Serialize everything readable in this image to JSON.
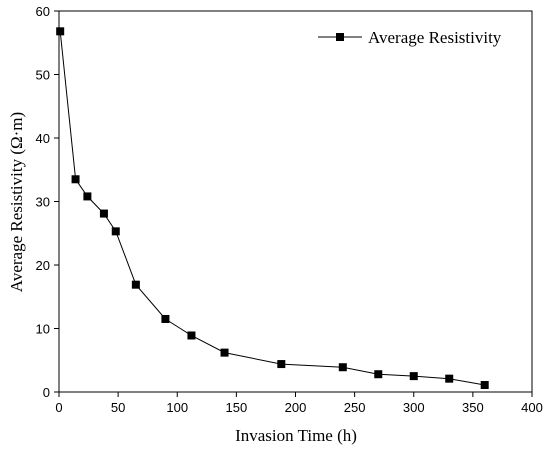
{
  "chart_data": {
    "type": "line",
    "xlabel": "Invasion Time (h)",
    "ylabel": "Average Resistivity (Ω·m)",
    "xlim": [
      0,
      400
    ],
    "ylim": [
      0,
      60
    ],
    "x_ticks": [
      0,
      50,
      100,
      150,
      200,
      250,
      300,
      350,
      400
    ],
    "y_ticks": [
      0,
      10,
      20,
      30,
      40,
      50,
      60
    ],
    "grid": false,
    "legend_position": "top-right",
    "series": [
      {
        "name": "Average Resistivity",
        "marker": "square",
        "color": "#000000",
        "x": [
          1,
          14,
          24,
          38,
          48,
          65,
          90,
          112,
          140,
          188,
          240,
          270,
          300,
          330,
          360
        ],
        "y": [
          56.8,
          33.5,
          30.8,
          28.1,
          25.3,
          16.9,
          11.5,
          8.9,
          6.2,
          4.4,
          3.9,
          2.8,
          2.5,
          2.1,
          1.1
        ]
      }
    ]
  }
}
